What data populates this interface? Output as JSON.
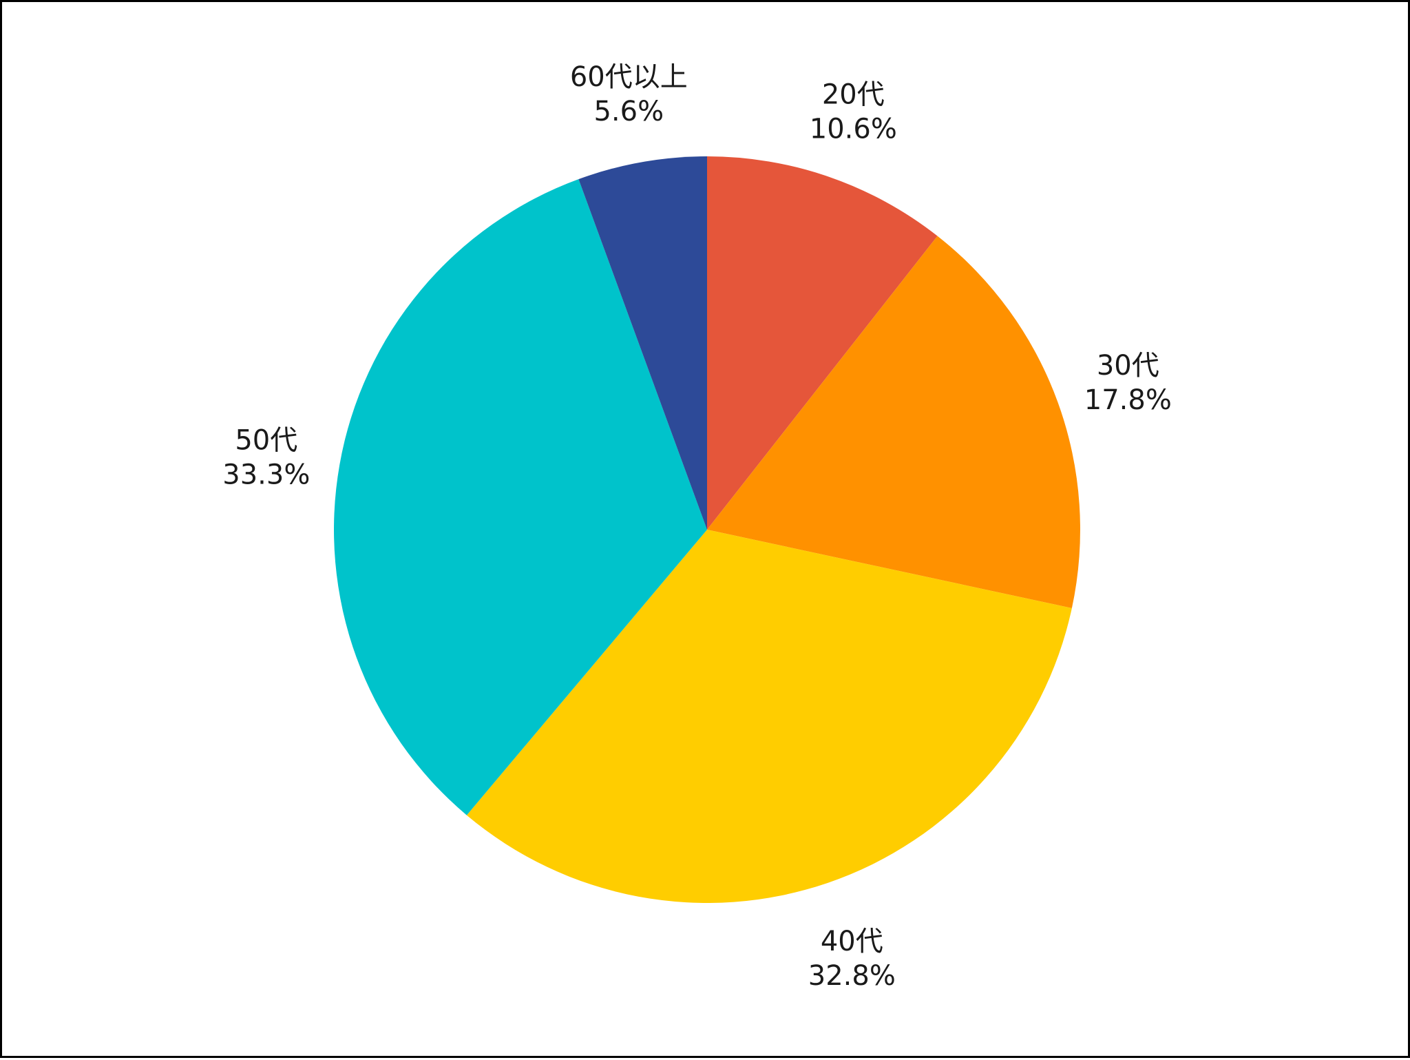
{
  "chart_data": {
    "type": "pie",
    "title": "",
    "start_angle": "12 o'clock",
    "direction": "clockwise",
    "slices": [
      {
        "label": "20代",
        "value": 10.6,
        "value_label": "10.6%",
        "color": "#E5563A"
      },
      {
        "label": "30代",
        "value": 17.8,
        "value_label": "17.8%",
        "color": "#FF9100"
      },
      {
        "label": "40代",
        "value": 32.8,
        "value_label": "32.8%",
        "color": "#FFCD00"
      },
      {
        "label": "50代",
        "value": 33.3,
        "value_label": "33.3%",
        "color": "#00C3CB"
      },
      {
        "label": "60代以上",
        "value": 5.6,
        "value_label": "5.6%",
        "color": "#2D4A98"
      }
    ],
    "legend": "none"
  }
}
